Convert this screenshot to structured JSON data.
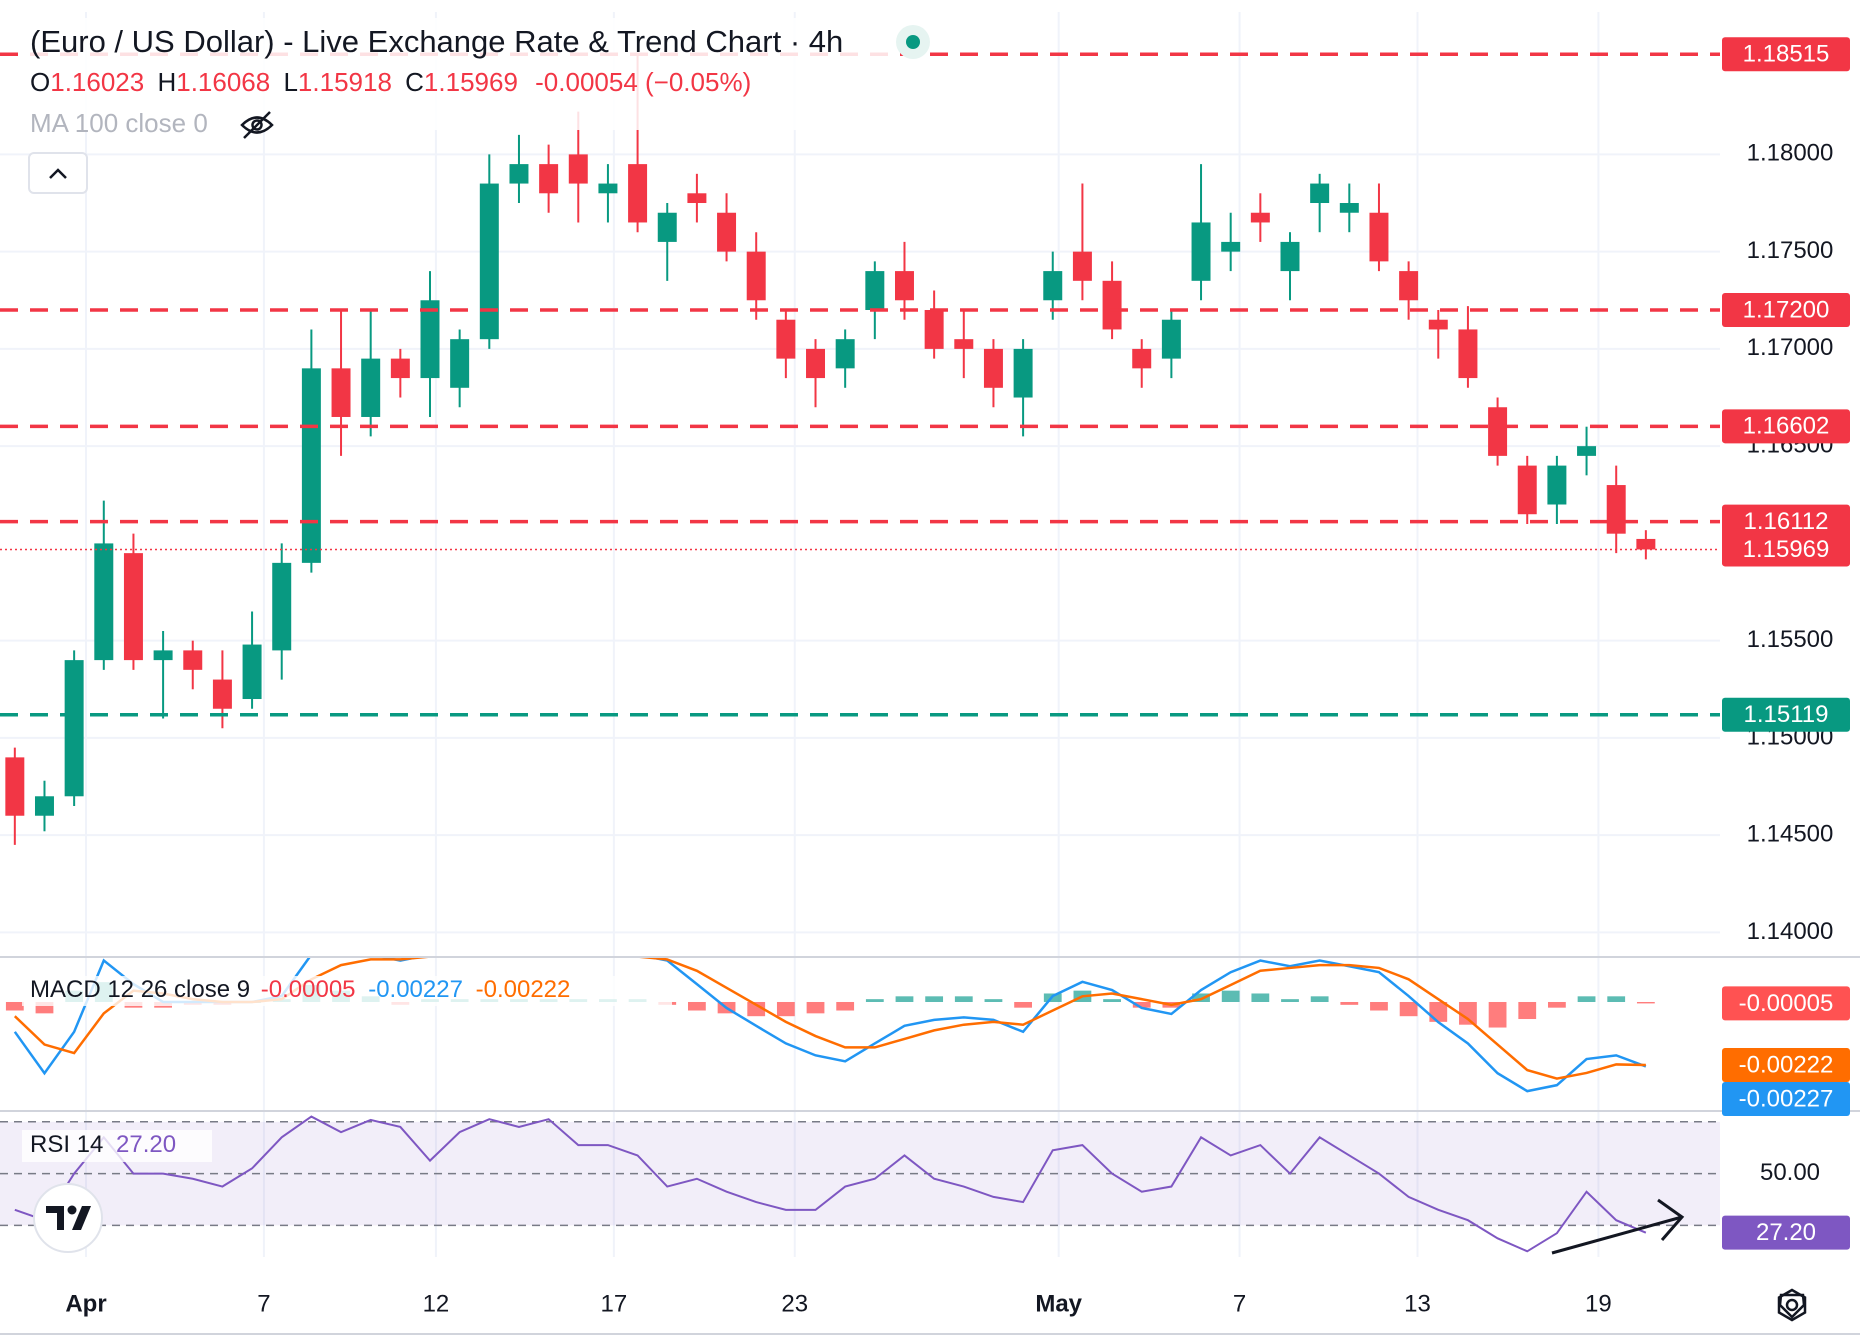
{
  "chart_data": [
    {
      "type": "candlestick",
      "title": "(Euro / US Dollar) - Live Exchange Rate & Trend Chart · 4h",
      "ohlc_keys": [
        "O",
        "H",
        "L",
        "C"
      ],
      "change": "-0.00054 (−0.05%)",
      "indicator": "MA 100 close 0",
      "up_color": "#089981",
      "down_color": "#f23645",
      "x": [
        0,
        1,
        2,
        3,
        4,
        5,
        6,
        7,
        8,
        9,
        10,
        11,
        12,
        13,
        14,
        15,
        16,
        17,
        18,
        19,
        20,
        21,
        22,
        23,
        24,
        25,
        26,
        27,
        28,
        29,
        30,
        31,
        32,
        33,
        34,
        35,
        36,
        37,
        38,
        39,
        40,
        41,
        42,
        43,
        44,
        45,
        46,
        47,
        48,
        49,
        50,
        51,
        52,
        53,
        54,
        55
      ],
      "open": [
        1.149,
        1.146,
        1.147,
        1.154,
        1.1595,
        1.154,
        1.1545,
        1.153,
        1.152,
        1.1545,
        1.159,
        1.169,
        1.1665,
        1.1695,
        1.1685,
        1.168,
        1.1705,
        1.1785,
        1.1795,
        1.18,
        1.178,
        1.1795,
        1.1755,
        1.178,
        1.177,
        1.175,
        1.1715,
        1.17,
        1.169,
        1.172,
        1.174,
        1.172,
        1.1705,
        1.17,
        1.1675,
        1.1725,
        1.175,
        1.1735,
        1.17,
        1.1695,
        1.1735,
        1.175,
        1.177,
        1.174,
        1.1775,
        1.177,
        1.177,
        1.174,
        1.1715,
        1.171,
        1.167,
        1.164,
        1.162,
        1.1645,
        1.163,
        1.16023
      ],
      "high": [
        1.1495,
        1.1478,
        1.1545,
        1.1622,
        1.1605,
        1.1555,
        1.155,
        1.1545,
        1.1565,
        1.16,
        1.171,
        1.172,
        1.172,
        1.17,
        1.174,
        1.171,
        1.18,
        1.181,
        1.1805,
        1.1822,
        1.1795,
        1.1852,
        1.1775,
        1.179,
        1.178,
        1.176,
        1.172,
        1.1705,
        1.171,
        1.1745,
        1.1755,
        1.173,
        1.172,
        1.1705,
        1.1705,
        1.175,
        1.1785,
        1.1745,
        1.1705,
        1.172,
        1.1795,
        1.177,
        1.178,
        1.176,
        1.179,
        1.1785,
        1.1785,
        1.1745,
        1.172,
        1.1722,
        1.1675,
        1.1645,
        1.1645,
        1.166,
        1.164,
        1.16068
      ],
      "low": [
        1.1445,
        1.1452,
        1.1465,
        1.1535,
        1.1535,
        1.151,
        1.1525,
        1.1505,
        1.1515,
        1.153,
        1.1585,
        1.1645,
        1.1655,
        1.1675,
        1.1665,
        1.167,
        1.17,
        1.1775,
        1.177,
        1.1765,
        1.1765,
        1.176,
        1.1735,
        1.1765,
        1.1745,
        1.1715,
        1.1685,
        1.167,
        1.168,
        1.1705,
        1.1715,
        1.1695,
        1.1685,
        1.167,
        1.1655,
        1.1715,
        1.1725,
        1.1705,
        1.168,
        1.1685,
        1.1725,
        1.174,
        1.1755,
        1.1725,
        1.176,
        1.176,
        1.174,
        1.1715,
        1.1695,
        1.168,
        1.164,
        1.161,
        1.161,
        1.1635,
        1.1595,
        1.15918
      ],
      "close": [
        1.146,
        1.147,
        1.154,
        1.16,
        1.154,
        1.1545,
        1.1535,
        1.1515,
        1.1548,
        1.159,
        1.169,
        1.1665,
        1.1695,
        1.1685,
        1.1725,
        1.1705,
        1.1785,
        1.1795,
        1.178,
        1.1785,
        1.1785,
        1.1765,
        1.177,
        1.1775,
        1.175,
        1.1725,
        1.1695,
        1.1685,
        1.1705,
        1.174,
        1.1725,
        1.17,
        1.17,
        1.168,
        1.17,
        1.174,
        1.1735,
        1.171,
        1.169,
        1.1715,
        1.1765,
        1.1755,
        1.1765,
        1.1755,
        1.1785,
        1.1775,
        1.1745,
        1.1725,
        1.171,
        1.1685,
        1.1645,
        1.1615,
        1.164,
        1.165,
        1.1605,
        1.15969
      ],
      "xlim": [
        -0.5,
        57.5
      ],
      "xticks": [
        {
          "value": 2.4,
          "label": "Apr"
        },
        {
          "value": 8.4,
          "label": "7"
        },
        {
          "value": 14.2,
          "label": "12"
        },
        {
          "value": 20.2,
          "label": "17"
        },
        {
          "value": 26.3,
          "label": "23"
        },
        {
          "value": 35.2,
          "label": "May"
        },
        {
          "value": 41.3,
          "label": "7"
        },
        {
          "value": 47.3,
          "label": "13"
        },
        {
          "value": 53.4,
          "label": "19"
        }
      ],
      "ylim": [
        1.13884,
        1.18732
      ],
      "yticks": [
        {
          "value": 1.18,
          "label": "1.18000"
        },
        {
          "value": 1.175,
          "label": "1.17500"
        },
        {
          "value": 1.17,
          "label": "1.17000"
        },
        {
          "value": 1.165,
          "label": "1.16500"
        },
        {
          "value": 1.155,
          "label": "1.15500"
        },
        {
          "value": 1.15,
          "label": "1.15000"
        },
        {
          "value": 1.145,
          "label": "1.14500"
        },
        {
          "value": 1.14,
          "label": "1.14000"
        }
      ],
      "grid": true,
      "levels": [
        1.18515,
        {
          "value": 1.172,
          "label": "1.17200"
        },
        1.16602,
        1.16112,
        1.15119
      ],
      "level_colors": [
        "#f23645",
        "#f23645",
        "#f23645",
        "#f23645",
        "#089981"
      ]
    },
    {
      "type": "macd",
      "title": "MACD 12 26 close 9",
      "ylim": [
        -0.00377,
        0.00155
      ],
      "series": [
        {
          "color": "#26a69a",
          "negative_color": "#ff5252",
          "values": [
            -0.0003,
            -0.0004,
            0.0004,
            0.0007,
            -0.0002,
            -0.0002,
            -0.0001,
            -0.0001,
            0,
            0.0001,
            0.0006,
            0.0004,
            0.0002,
            -0.0001,
            0.0001,
            0.0001,
            0.0001,
            0.0001,
            0.0001,
            0.0001,
            0.0001,
            0.0001,
            -0.0001,
            -0.0003,
            -0.0004,
            -0.0005,
            -0.0005,
            -0.0004,
            -0.0003,
            0.0001,
            0.0002,
            0.0002,
            0.0002,
            0.0001,
            -0.0002,
            0.0003,
            0.0004,
            0.0001,
            -0.0002,
            -0.0002,
            0.0003,
            0.0004,
            0.0003,
            0.0001,
            0.0002,
            -0.0001,
            -0.0003,
            -0.0005,
            -0.0007,
            -0.0008,
            -0.0009,
            -0.0006,
            -0.0002,
            0.0002,
            0.0002,
            -5e-05
          ]
        },
        {
          "color": "#2196f3",
          "values": [
            -0.00105,
            -0.00251,
            -0.00105,
            0.00146,
            0.00063,
            0,
            0,
            0,
            0,
            0.00021,
            0.00167,
            0.00167,
            0.00167,
            0.00146,
            0.00167,
            0.00167,
            0.00167,
            0.00167,
            0.00167,
            0.00167,
            0.00167,
            0.00167,
            0.00146,
            0.00063,
            -0.00021,
            -0.00084,
            -0.00146,
            -0.00188,
            -0.00209,
            -0.00146,
            -0.00084,
            -0.00063,
            -0.00054,
            -0.00063,
            -0.00105,
            0.00021,
            0.00071,
            0.00042,
            -0.00021,
            -0.00042,
            0.00042,
            0.00105,
            0.00146,
            0.00126,
            0.00146,
            0.00126,
            0.00105,
            0.00021,
            -0.00071,
            -0.00146,
            -0.00251,
            -0.00314,
            -0.00293,
            -0.00201,
            -0.00188,
            -0.00227
          ]
        },
        {
          "color": "#ff6d00",
          "values": [
            -0.0005,
            -0.0015,
            -0.0018,
            -0.0004,
            0.0004,
            0.0003,
            0.0001,
            0,
            0,
            0.0001,
            0.0008,
            0.0013,
            0.0015,
            0.0015,
            0.0016,
            0.0016,
            0.0016,
            0.0016,
            0.0016,
            0.0016,
            0.0016,
            0.0016,
            0.0015,
            0.0011,
            0.0005,
            -0.0001,
            -0.0007,
            -0.0012,
            -0.0016,
            -0.0016,
            -0.0013,
            -0.001,
            -0.0008,
            -0.0007,
            -0.0008,
            -0.0003,
            0.0002,
            0.0003,
            0.0001,
            -0.0001,
            0.0001,
            0.0006,
            0.0011,
            0.0012,
            0.0013,
            0.0013,
            0.0012,
            0.0008,
            0.0001,
            -0.0006,
            -0.0015,
            -0.0024,
            -0.0027,
            -0.0025,
            -0.0022,
            -0.00222
          ]
        }
      ]
    },
    {
      "type": "line",
      "title": "RSI 14",
      "color": "#7e57c2",
      "ylim": [
        17.8,
        73
      ],
      "yticks": [
        {
          "value": 50,
          "label": "50.00"
        }
      ],
      "levels": [
        70,
        50,
        30
      ],
      "values": [
        36,
        32,
        50,
        64,
        50,
        50,
        48,
        45,
        52,
        64,
        72,
        66,
        70.7,
        68,
        55,
        66,
        71,
        68,
        71,
        61,
        61,
        57,
        45,
        48,
        43,
        39,
        36,
        36,
        45,
        48,
        57,
        48,
        45,
        41,
        39,
        59,
        61,
        50,
        43,
        45,
        64,
        57,
        61,
        50,
        64,
        57,
        50,
        41,
        36,
        32,
        25,
        20,
        27,
        43,
        32,
        27.2
      ],
      "value_labels": [
        null,
        null,
        null,
        null,
        null,
        null,
        null,
        null,
        null,
        null,
        null,
        null,
        null,
        null,
        null,
        null,
        null,
        null,
        null,
        null,
        null,
        null,
        null,
        null,
        null,
        null,
        null,
        null,
        null,
        null,
        null,
        null,
        null,
        null,
        null,
        null,
        null,
        null,
        null,
        null,
        null,
        null,
        null,
        null,
        null,
        null,
        null,
        null,
        null,
        null,
        null,
        null,
        null,
        null,
        null,
        "27.20"
      ]
    }
  ]
}
